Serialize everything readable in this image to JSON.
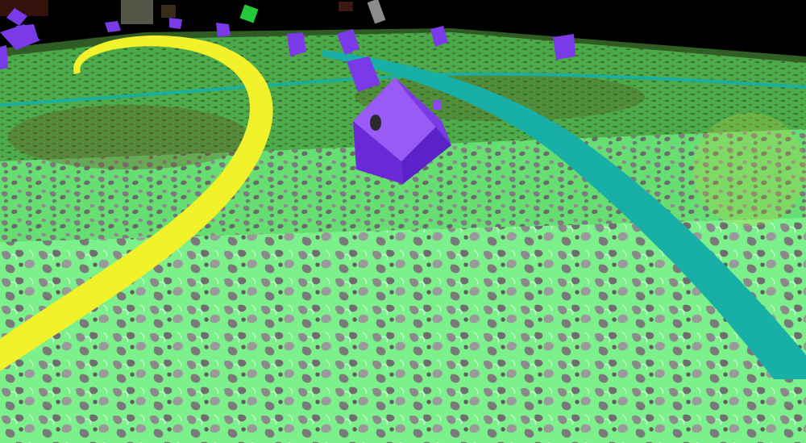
{
  "scene": {
    "description_free": true,
    "palette": {
      "sky": "#000000",
      "ground_light": "#7CF08A",
      "ground_mid": "#55D86A",
      "ground_dark": "#3FB050",
      "ground_shadow": "#8A8A8A",
      "ground_far": "#2F6A2A",
      "yellow_track": "#F2F22A",
      "cyan_track": "#18AFA6",
      "cube_main": "#7A3AE8",
      "cube_side": "#5A22C8",
      "cube_top": "#9A5AF6",
      "debris_green": "#22C93A",
      "debris_dark": "#3A2A1A"
    },
    "objects": {
      "ground": "terrain-ground",
      "tracks": [
        "yellow-track",
        "cyan-track",
        "cyan-track-far"
      ],
      "entities": [
        "purple-block"
      ]
    }
  }
}
